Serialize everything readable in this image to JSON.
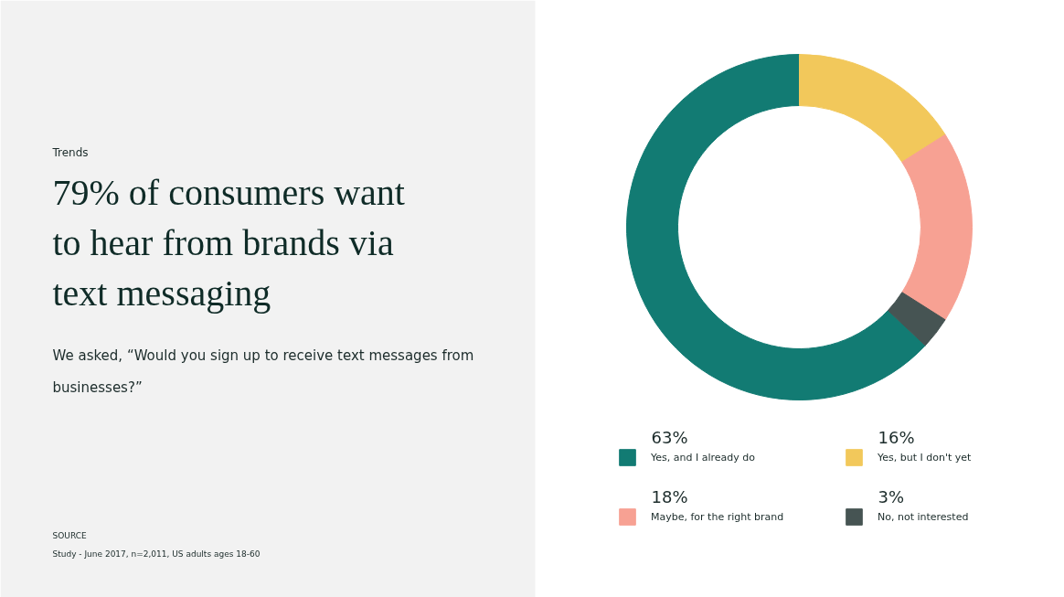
{
  "chart_data": {
    "type": "donut",
    "title": "79% of consumers want to hear from brands via text messaging",
    "subtitle": "We asked, “Would you sign up to receive text messages from businesses?”",
    "annotations": [
      "Trends",
      "SOURCE",
      "Study - June 2017, n=2,011, US adults ages 18-60"
    ],
    "categories": [
      "Yes, and I already do",
      "Yes, but I don't yet",
      "Maybe, for the right brand",
      "No, not interested"
    ],
    "values": [
      63,
      16,
      18,
      3
    ],
    "value_labels": [
      "63%",
      "16%",
      "18%",
      "3%"
    ],
    "colors": [
      "#127b73",
      "#f2c85b",
      "#f7a193",
      "#465453"
    ],
    "legend": "bottom"
  }
}
